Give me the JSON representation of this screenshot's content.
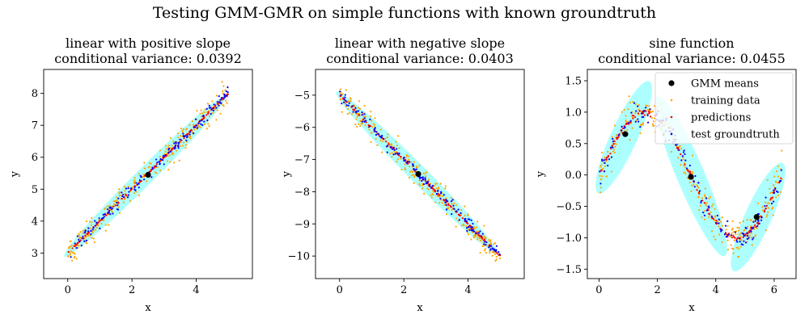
{
  "figure": {
    "suptitle": "Testing GMM-GMR on simple functions with known groundtruth"
  },
  "chart_data": [
    {
      "type": "scatter",
      "title": "linear with positive slope",
      "subtitle": "conditional variance: 0.0392",
      "xlabel": "x",
      "ylabel": "y",
      "xlim": [
        -0.75,
        5.75
      ],
      "ylim": [
        2.2,
        8.75
      ],
      "xticks": [
        0,
        2,
        4
      ],
      "yticks": [
        3,
        4,
        5,
        6,
        7,
        8
      ],
      "grid": false,
      "legend": null,
      "function": "linear",
      "slope": 1,
      "intercept": 3,
      "x_range": [
        0,
        5
      ],
      "gmm_means": [
        {
          "x": 2.5,
          "y": 5.45
        }
      ],
      "ellipses": [
        {
          "cx": 2.4,
          "cy": 5.4,
          "major": 3.55,
          "minor": 0.17,
          "dir": [
            1,
            1
          ]
        }
      ],
      "series": [
        {
          "name": "training data",
          "color": "#ffa500",
          "noise": 0.2,
          "count": 300
        },
        {
          "name": "predictions",
          "color": "#ff0000",
          "noise": 0.015,
          "count": 150
        },
        {
          "name": "test groundtruth",
          "color": "#0000ff",
          "noise": 0.1,
          "count": 150
        }
      ]
    },
    {
      "type": "scatter",
      "title": "linear with negative slope",
      "subtitle": "conditional variance: 0.0403",
      "xlabel": "x",
      "ylabel": "y",
      "xlim": [
        -0.75,
        5.75
      ],
      "ylim": [
        -10.7,
        -4.2
      ],
      "xticks": [
        0,
        2,
        4
      ],
      "yticks": [
        -10,
        -9,
        -8,
        -7,
        -6,
        -5
      ],
      "grid": false,
      "legend": null,
      "function": "linear",
      "slope": -1,
      "intercept": -5,
      "x_range": [
        0,
        5
      ],
      "gmm_means": [
        {
          "x": 2.45,
          "y": -7.45
        }
      ],
      "ellipses": [
        {
          "cx": 2.4,
          "cy": -7.4,
          "major": 3.55,
          "minor": 0.17,
          "dir": [
            1,
            -1
          ]
        }
      ],
      "series": [
        {
          "name": "training data",
          "color": "#ffa500",
          "noise": 0.2,
          "count": 300
        },
        {
          "name": "predictions",
          "color": "#ff0000",
          "noise": 0.015,
          "count": 150
        },
        {
          "name": "test groundtruth",
          "color": "#0000ff",
          "noise": 0.1,
          "count": 150
        }
      ]
    },
    {
      "type": "scatter",
      "title": "sine function",
      "subtitle": "conditional variance: 0.0455",
      "xlabel": "x",
      "ylabel": "y",
      "xlim": [
        -0.4,
        6.75
      ],
      "ylim": [
        -1.65,
        1.68
      ],
      "xticks": [
        0,
        2,
        4,
        6
      ],
      "yticks": [
        -1.5,
        -1.0,
        -0.5,
        0.0,
        0.5,
        1.0,
        1.5
      ],
      "ytick_labels": [
        "−1.5",
        "−1.0",
        "−0.5",
        "0.0",
        "0.5",
        "1.0",
        "1.5"
      ],
      "grid": false,
      "legend": "upper right",
      "function": "sine",
      "x_range": [
        0,
        6.28
      ],
      "gmm_means": [
        {
          "x": 0.9,
          "y": 0.65
        },
        {
          "x": 3.15,
          "y": -0.03
        },
        {
          "x": 5.4,
          "y": -0.67
        }
      ],
      "ellipses": [
        {
          "cx": 0.85,
          "cy": 0.6,
          "major": 1.25,
          "minor": 0.16,
          "dir": [
            1,
            1.02
          ]
        },
        {
          "cx": 3.15,
          "cy": -0.02,
          "major": 1.72,
          "minor": 0.17,
          "dir": [
            1,
            -1.1
          ]
        },
        {
          "cx": 5.45,
          "cy": -0.67,
          "major": 1.2,
          "minor": 0.16,
          "dir": [
            1,
            1.03
          ]
        }
      ],
      "series": [
        {
          "name": "training data",
          "color": "#ffa500",
          "noise": 0.15,
          "count": 300
        },
        {
          "name": "predictions",
          "color": "#ff0000",
          "noise": 0.02,
          "count": 150
        },
        {
          "name": "test groundtruth",
          "color": "#0000ff",
          "noise": 0.1,
          "count": 150
        }
      ],
      "legend_entries": [
        {
          "label": "GMM means",
          "color": "#000000",
          "marker": "large-dot"
        },
        {
          "label": "training data",
          "color": "#ffa500",
          "marker": "small-dot"
        },
        {
          "label": "predictions",
          "color": "#ff0000",
          "marker": "small-dot"
        },
        {
          "label": "test groundtruth",
          "color": "#0000ff",
          "marker": "small-dot"
        }
      ]
    }
  ],
  "colors": {
    "ellipse_fill": "#00ffff",
    "mean_marker": "#000000"
  }
}
